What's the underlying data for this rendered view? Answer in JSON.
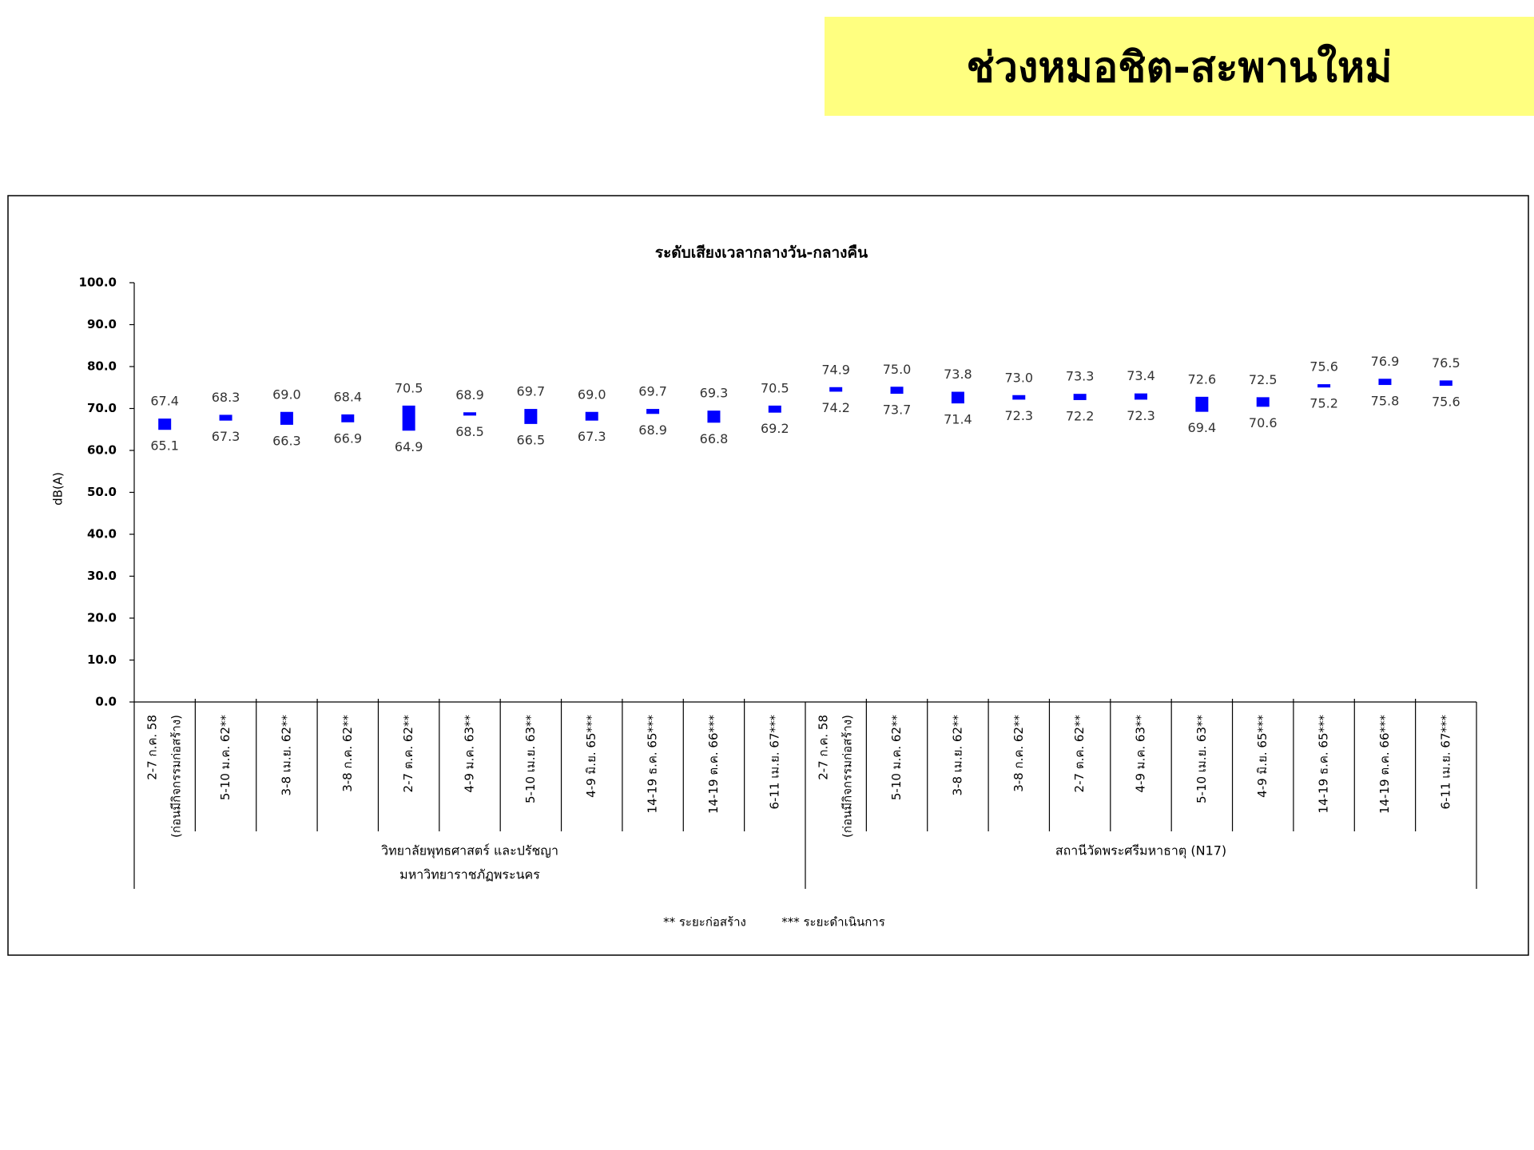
{
  "header": {
    "title": "ช่วงหมอชิต-สะพานใหม่"
  },
  "chart_data": {
    "type": "floating_bar",
    "title": "ระดับเสียงเวลากลางวัน-กลางคืน",
    "y_label": "dB(A)",
    "color": "#0000ff",
    "grid": false,
    "ylim": [
      0,
      100
    ],
    "yticks": [
      {
        "value": 0,
        "label": "0.0"
      },
      {
        "value": 10,
        "label": "10.0"
      },
      {
        "value": 20,
        "label": "20.0"
      },
      {
        "value": 30,
        "label": "30.0"
      },
      {
        "value": 40,
        "label": "40.0"
      },
      {
        "value": 50,
        "label": "50.0"
      },
      {
        "value": 60,
        "label": "60.0"
      },
      {
        "value": 70,
        "label": "70.0"
      },
      {
        "value": 80,
        "label": "80.0"
      },
      {
        "value": 90,
        "label": "90.0"
      },
      {
        "value": 100,
        "label": "100.0"
      }
    ],
    "footnotes": [
      "** ระยะก่อสร้าง",
      "*** ระยะดำเนินการ"
    ],
    "groups": [
      {
        "name_lines": [
          "วิทยาลัยพุทธศาสตร์ และปรัชญา",
          "มหาวิทยาราชภัฏพระนคร"
        ],
        "categories": [
          [
            "2-7 ก.ค. 58",
            "(ก่อนมีกิจกรรมก่อสร้าง)"
          ],
          [
            "5-10 ม.ค. 62**"
          ],
          [
            "3-8 เม.ย. 62**"
          ],
          [
            "3-8 ก.ค. 62**"
          ],
          [
            "2-7 ต.ค. 62**"
          ],
          [
            "4-9 ม.ค. 63**"
          ],
          [
            "5-10 เม.ย. 63**"
          ],
          [
            "4-9 มิ.ย. 65***"
          ],
          [
            "14-19 ธ.ค. 65***"
          ],
          [
            "14-19 ต.ค. 66***"
          ],
          [
            "6-11 เม.ย. 67***"
          ]
        ],
        "high": [
          67.4,
          68.3,
          69.0,
          68.4,
          70.5,
          68.9,
          69.7,
          69.0,
          69.7,
          69.3,
          70.5
        ],
        "high_labels": [
          "67.4",
          "68.3",
          "69.0",
          "68.4",
          "70.5",
          "68.9",
          "69.7",
          "69.0",
          "69.7",
          "69.3",
          "70.5"
        ],
        "low": [
          65.1,
          67.3,
          66.3,
          66.9,
          64.9,
          68.5,
          66.5,
          67.3,
          68.9,
          66.8,
          69.2
        ],
        "low_labels": [
          "65.1",
          "67.3",
          "66.3",
          "66.9",
          "64.9",
          "68.5",
          "66.5",
          "67.3",
          "68.9",
          "66.8",
          "69.2"
        ]
      },
      {
        "name_lines": [
          "สถานีวัดพระศรีมหาธาตุ (N17)"
        ],
        "categories": [
          [
            "2-7 ก.ค. 58",
            "(ก่อนมีกิจกรรมก่อสร้าง)"
          ],
          [
            "5-10 ม.ค. 62**"
          ],
          [
            "3-8 เม.ย. 62**"
          ],
          [
            "3-8 ก.ค. 62**"
          ],
          [
            "2-7 ต.ค. 62**"
          ],
          [
            "4-9 ม.ค. 63**"
          ],
          [
            "5-10 เม.ย. 63**"
          ],
          [
            "4-9 มิ.ย. 65***"
          ],
          [
            "14-19 ธ.ค. 65***"
          ],
          [
            "14-19 ต.ค. 66***"
          ],
          [
            "6-11 เม.ย. 67***"
          ]
        ],
        "high": [
          74.9,
          75.0,
          73.8,
          73.0,
          73.3,
          73.4,
          72.6,
          72.5,
          75.6,
          76.9,
          76.5
        ],
        "high_labels": [
          "74.9",
          "75.0",
          "73.8",
          "73.0",
          "73.3",
          "73.4",
          "72.6",
          "72.5",
          "75.6",
          "76.9",
          "76.5"
        ],
        "low": [
          74.2,
          73.7,
          71.4,
          72.3,
          72.2,
          72.3,
          69.4,
          70.6,
          75.2,
          75.8,
          75.6
        ],
        "low_labels": [
          "74.2",
          "73.7",
          "71.4",
          "72.3",
          "72.2",
          "72.3",
          "69.4",
          "70.6",
          "75.2",
          "75.8",
          "75.6"
        ]
      }
    ]
  }
}
